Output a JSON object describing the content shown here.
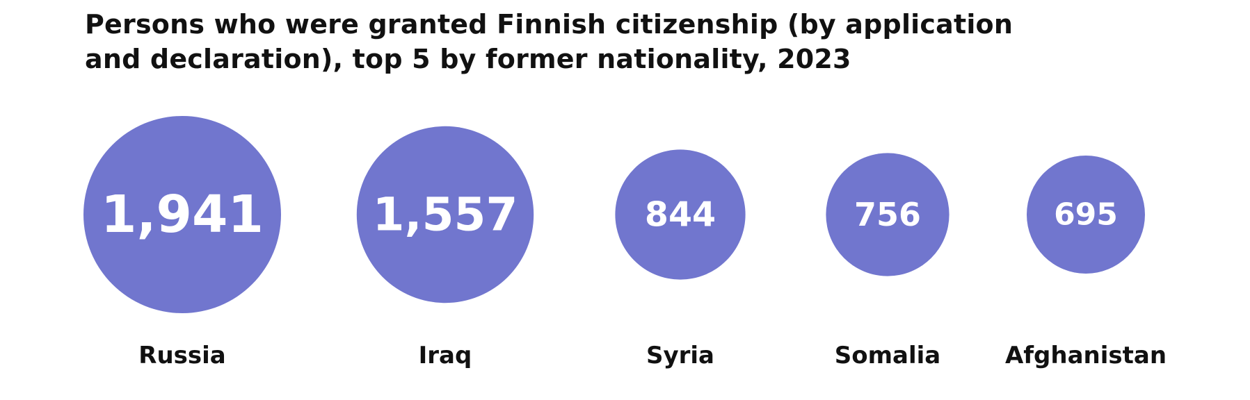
{
  "chart_data": {
    "type": "bubble",
    "title": "Persons who were granted Finnish citizenship (by application and declaration), top 5 by former nationality, 2023",
    "categories": [
      "Russia",
      "Iraq",
      "Syria",
      "Somalia",
      "Afghanistan"
    ],
    "values": [
      1941,
      1557,
      844,
      756,
      695
    ],
    "value_labels": [
      "1,941",
      "1,557",
      "844",
      "756",
      "695"
    ],
    "bubble_color": "#7176ce",
    "value_label_color": "#ffffff",
    "label_color": "#111111",
    "legend": "none",
    "grid": false
  }
}
